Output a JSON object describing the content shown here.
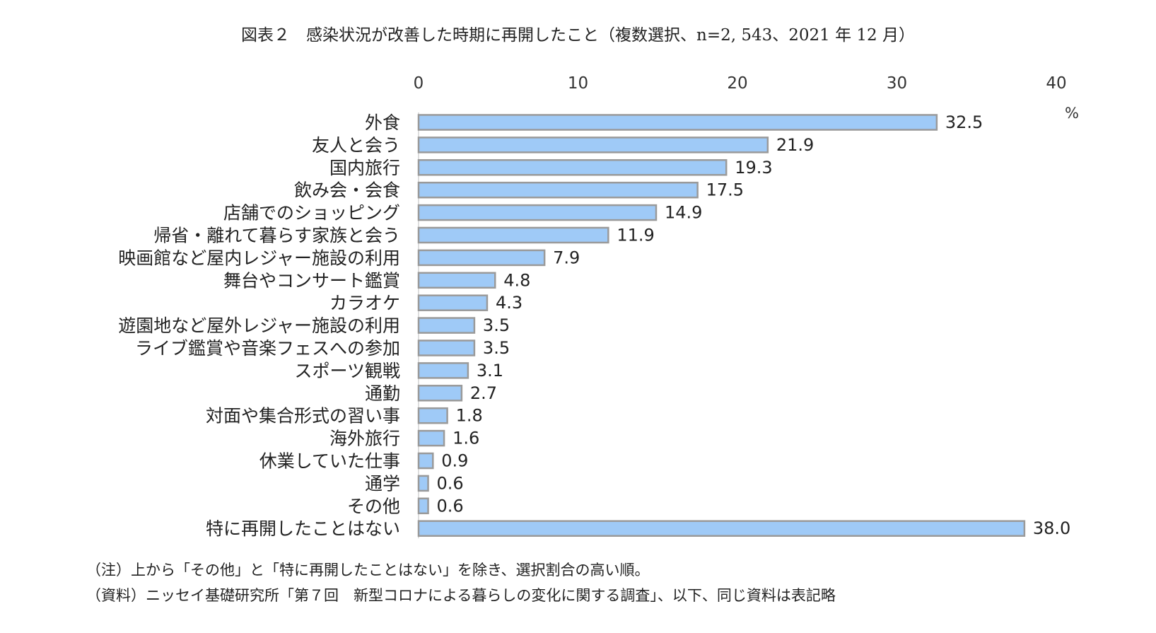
{
  "chart_data": {
    "type": "bar",
    "orientation": "horizontal",
    "title": "図表２　感染状況が改善した時期に再開したこと（複数選択、n=2, 543、2021 年 12 月）",
    "unit": "%",
    "xlim": [
      0,
      40
    ],
    "xticks": [
      0,
      10,
      20,
      30,
      40
    ],
    "categories": [
      "外食",
      "友人と会う",
      "国内旅行",
      "飲み会・会食",
      "店舗でのショッピング",
      "帰省・離れて暮らす家族と会う",
      "映画館など屋内レジャー施設の利用",
      "舞台やコンサート鑑賞",
      "カラオケ",
      "遊園地など屋外レジャー施設の利用",
      "ライブ鑑賞や音楽フェスへの参加",
      "スポーツ観戦",
      "通勤",
      "対面や集合形式の習い事",
      "海外旅行",
      "休業していた仕事",
      "通学",
      "その他",
      "特に再開したことはない"
    ],
    "values": [
      32.5,
      21.9,
      19.3,
      17.5,
      14.9,
      11.9,
      7.9,
      4.8,
      4.3,
      3.5,
      3.5,
      3.1,
      2.7,
      1.8,
      1.6,
      0.9,
      0.6,
      0.6,
      38.0
    ],
    "value_labels": [
      "32.5",
      "21.9",
      "19.3",
      "17.5",
      "14.9",
      "11.9",
      "7.9",
      "4.8",
      "4.3",
      "3.5",
      "3.5",
      "3.1",
      "2.7",
      "1.8",
      "1.6",
      "0.9",
      "0.6",
      "0.6",
      "38.0"
    ],
    "bar_color": "#9fcaf7",
    "bar_edge_color": "#9a9a9a",
    "grid": false,
    "legend": "none"
  },
  "notes": {
    "note1": "（注）上から「その他」と「特に再開したことはない」を除き、選択割合の高い順。",
    "note2": "（資料）ニッセイ基礎研究所「第７回　新型コロナによる暮らしの変化に関する調査」、以下、同じ資料は表記略"
  }
}
